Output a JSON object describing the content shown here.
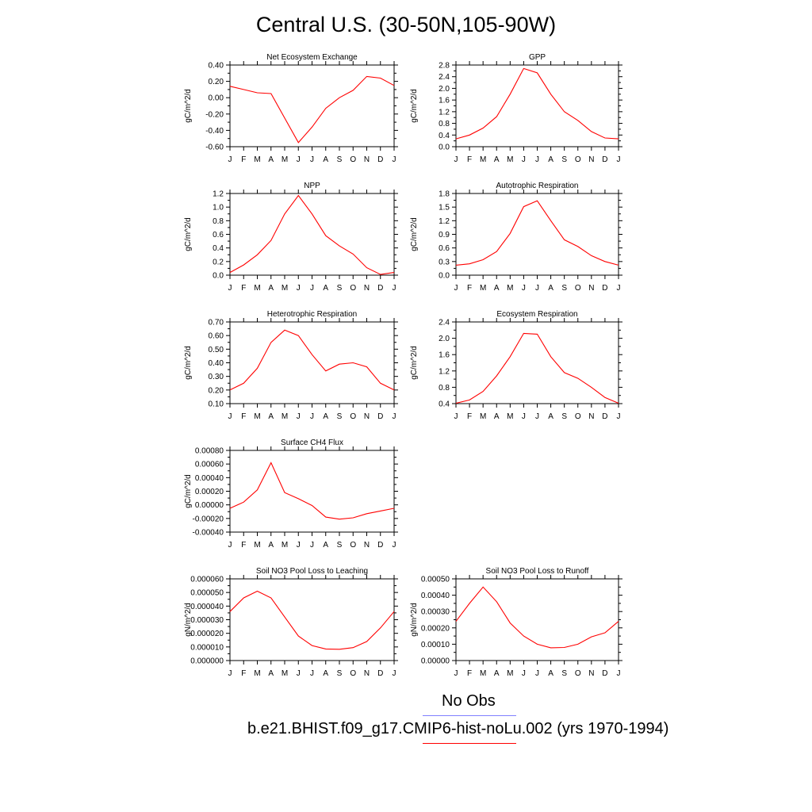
{
  "main_title": "Central U.S. (30-50N,105-90W)",
  "months": [
    "J",
    "F",
    "M",
    "A",
    "M",
    "J",
    "J",
    "A",
    "S",
    "O",
    "N",
    "D",
    "J"
  ],
  "colors": {
    "series": "#ff0000",
    "obs": "#8080ff"
  },
  "legend": {
    "obs_label": "No Obs",
    "model_label": "b.e21.BHIST.f09_g17.CMIP6-hist-noLu.002 (yrs 1970-1994)"
  },
  "chart_data": [
    {
      "type": "line",
      "title": "Net Ecosystem Exchange",
      "ylabel": "gC/m^2/d",
      "ylim": [
        -0.6,
        0.4
      ],
      "yticks": [
        -0.6,
        -0.4,
        -0.2,
        0.0,
        0.2,
        0.4
      ],
      "ytick_labels": [
        "-0.60",
        "-0.40",
        "-0.20",
        "0.00",
        "0.20",
        "0.40"
      ],
      "values": [
        0.14,
        0.1,
        0.06,
        0.05,
        -0.25,
        -0.55,
        -0.36,
        -0.13,
        0.0,
        0.09,
        0.26,
        0.24,
        0.15
      ]
    },
    {
      "type": "line",
      "title": "GPP",
      "ylabel": "gC/m^2/d",
      "ylim": [
        0.0,
        2.8
      ],
      "yticks": [
        0.0,
        0.4,
        0.8,
        1.2,
        1.6,
        2.0,
        2.4,
        2.8
      ],
      "ytick_labels": [
        "0.0",
        "0.4",
        "0.8",
        "1.2",
        "1.6",
        "2.0",
        "2.4",
        "2.8"
      ],
      "values": [
        0.27,
        0.4,
        0.64,
        1.03,
        1.8,
        2.68,
        2.53,
        1.8,
        1.2,
        0.9,
        0.52,
        0.3,
        0.27
      ]
    },
    {
      "type": "line",
      "title": "NPP",
      "ylabel": "gC/m^2/d",
      "ylim": [
        0.0,
        1.2
      ],
      "yticks": [
        0.0,
        0.2,
        0.4,
        0.6,
        0.8,
        1.0,
        1.2
      ],
      "ytick_labels": [
        "0.0",
        "0.2",
        "0.4",
        "0.6",
        "0.8",
        "1.0",
        "1.2"
      ],
      "values": [
        0.04,
        0.15,
        0.3,
        0.51,
        0.9,
        1.17,
        0.9,
        0.58,
        0.43,
        0.31,
        0.11,
        0.01,
        0.04
      ]
    },
    {
      "type": "line",
      "title": "Autotrophic Respiration",
      "ylabel": "gC/m^2/d",
      "ylim": [
        0.0,
        1.8
      ],
      "yticks": [
        0.0,
        0.3,
        0.6,
        0.9,
        1.2,
        1.5,
        1.8
      ],
      "ytick_labels": [
        "0.0",
        "0.3",
        "0.6",
        "0.9",
        "1.2",
        "1.5",
        "1.8"
      ],
      "values": [
        0.22,
        0.25,
        0.34,
        0.52,
        0.92,
        1.51,
        1.64,
        1.2,
        0.78,
        0.63,
        0.43,
        0.3,
        0.22
      ]
    },
    {
      "type": "line",
      "title": "Heterotrophic Respiration",
      "ylabel": "gC/m^2/d",
      "ylim": [
        0.1,
        0.7
      ],
      "yticks": [
        0.1,
        0.2,
        0.3,
        0.4,
        0.5,
        0.6,
        0.7
      ],
      "ytick_labels": [
        "0.10",
        "0.20",
        "0.30",
        "0.40",
        "0.50",
        "0.60",
        "0.70"
      ],
      "values": [
        0.2,
        0.25,
        0.36,
        0.55,
        0.64,
        0.6,
        0.46,
        0.34,
        0.39,
        0.4,
        0.37,
        0.25,
        0.2
      ]
    },
    {
      "type": "line",
      "title": "Ecosystem Respiration",
      "ylabel": "gC/m^2/d",
      "ylim": [
        0.4,
        2.4
      ],
      "yticks": [
        0.4,
        0.8,
        1.2,
        1.6,
        2.0,
        2.4
      ],
      "ytick_labels": [
        "0.4",
        "0.8",
        "1.2",
        "1.6",
        "2.0",
        "2.4"
      ],
      "values": [
        0.41,
        0.49,
        0.7,
        1.08,
        1.55,
        2.12,
        2.1,
        1.55,
        1.16,
        1.02,
        0.8,
        0.55,
        0.41
      ]
    },
    {
      "type": "line",
      "title": "Surface CH4 Flux",
      "ylabel": "gC/m^2/d",
      "ylim": [
        -0.0004,
        0.0008
      ],
      "yticks": [
        -0.0004,
        -0.0002,
        0.0,
        0.0002,
        0.0004,
        0.0006,
        0.0008
      ],
      "ytick_labels": [
        "-0.00040",
        "-0.00020",
        "0.00000",
        "0.00020",
        "0.00040",
        "0.00060",
        "0.00080"
      ],
      "values": [
        -5e-05,
        4e-05,
        0.00022,
        0.00062,
        0.00018,
        9e-05,
        -1e-05,
        -0.00018,
        -0.00021,
        -0.00019,
        -0.00013,
        -9e-05,
        -5e-05
      ]
    },
    {
      "type": "line",
      "title": "Soil NO3 Pool Loss to Leaching",
      "ylabel": "gN/m^2/d",
      "ylim": [
        0.0,
        6e-05
      ],
      "yticks": [
        0.0,
        1e-05,
        2e-05,
        3e-05,
        4e-05,
        5e-05,
        6e-05
      ],
      "ytick_labels": [
        "0.000000",
        "0.000010",
        "0.000020",
        "0.000030",
        "0.000040",
        "0.000050",
        "0.000060"
      ],
      "values": [
        3.6e-05,
        4.6e-05,
        5.1e-05,
        4.6e-05,
        3.2e-05,
        1.8e-05,
        1.1e-05,
        8.5e-06,
        8.3e-06,
        9.5e-06,
        1.4e-05,
        2.4e-05,
        3.6e-05
      ]
    },
    {
      "type": "line",
      "title": "Soil NO3 Pool Loss to Runoff",
      "ylabel": "gN/m^2/d",
      "ylim": [
        0.0,
        0.0005
      ],
      "yticks": [
        0.0,
        0.0001,
        0.0002,
        0.0003,
        0.0004,
        0.0005
      ],
      "ytick_labels": [
        "0.00000",
        "0.00010",
        "0.00020",
        "0.00030",
        "0.00040",
        "0.00050"
      ],
      "values": [
        0.00024,
        0.00035,
        0.00045,
        0.00036,
        0.00023,
        0.00015,
        0.0001,
        7.8e-05,
        8e-05,
        0.0001,
        0.000145,
        0.00017,
        0.00024
      ]
    }
  ]
}
